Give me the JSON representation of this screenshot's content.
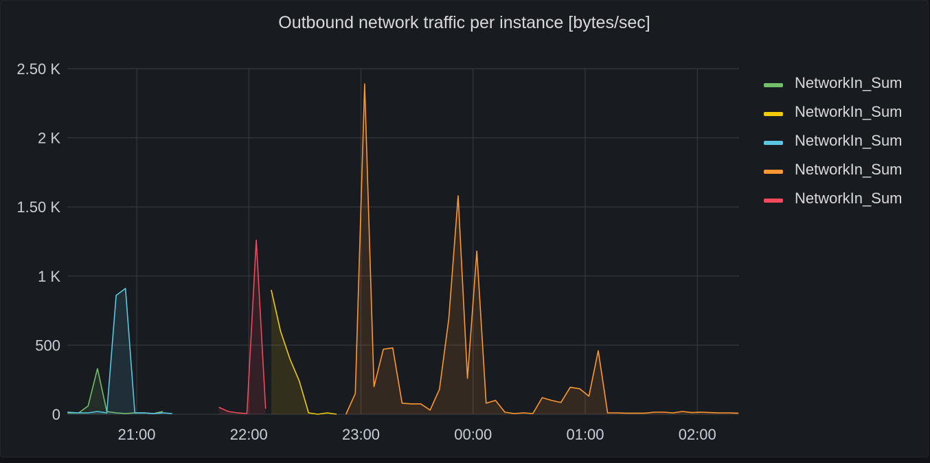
{
  "panel": {
    "title": "Outbound network traffic per instance [bytes/sec]"
  },
  "chart_data": {
    "type": "area",
    "title": "Outbound network traffic per instance [bytes/sec]",
    "xlabel": "",
    "ylabel": "",
    "x_ticks": [
      "21:00",
      "22:00",
      "23:00",
      "00:00",
      "01:00",
      "02:00"
    ],
    "y_ticks": [
      "0",
      "500",
      "1 K",
      "1.50 K",
      "2 K",
      "2.50 K"
    ],
    "ylim": [
      0,
      2500
    ],
    "grid": true,
    "legend_position": "right",
    "series": [
      {
        "name": "NetworkIn_Sum",
        "color": "#73bf69",
        "points": [
          [
            "20:23",
            10
          ],
          [
            "20:29",
            10
          ],
          [
            "20:34",
            60
          ],
          [
            "20:39",
            330
          ],
          [
            "20:44",
            20
          ],
          [
            "20:49",
            10
          ],
          [
            "20:54",
            5
          ],
          [
            "20:59",
            10
          ],
          [
            "21:04",
            10
          ],
          [
            "21:09",
            5
          ],
          [
            "21:14",
            20
          ]
        ]
      },
      {
        "name": "NetworkIn_Sum",
        "color": "#f2cc0c",
        "points": [
          [
            "22:12",
            900
          ],
          [
            "22:17",
            600
          ],
          [
            "22:22",
            400
          ],
          [
            "22:27",
            240
          ],
          [
            "22:32",
            10
          ],
          [
            "22:37",
            0
          ],
          [
            "22:42",
            10
          ],
          [
            "22:47",
            0
          ]
        ]
      },
      {
        "name": "NetworkIn_Sum",
        "color": "#5ac8e3",
        "points": [
          [
            "20:23",
            15
          ],
          [
            "20:29",
            10
          ],
          [
            "20:34",
            10
          ],
          [
            "20:39",
            20
          ],
          [
            "20:44",
            10
          ],
          [
            "20:49",
            860
          ],
          [
            "20:54",
            910
          ],
          [
            "20:59",
            10
          ],
          [
            "21:04",
            10
          ],
          [
            "21:09",
            5
          ],
          [
            "21:14",
            10
          ],
          [
            "21:19",
            5
          ]
        ]
      },
      {
        "name": "NetworkIn_Sum",
        "color": "#ff9830",
        "points": [
          [
            "22:52",
            0
          ],
          [
            "22:57",
            150
          ],
          [
            "23:02",
            2390
          ],
          [
            "23:07",
            200
          ],
          [
            "23:12",
            470
          ],
          [
            "23:17",
            480
          ],
          [
            "23:22",
            80
          ],
          [
            "23:27",
            75
          ],
          [
            "23:32",
            75
          ],
          [
            "23:37",
            30
          ],
          [
            "23:42",
            180
          ],
          [
            "23:47",
            690
          ],
          [
            "23:52",
            1580
          ],
          [
            "23:57",
            260
          ],
          [
            "00:02",
            1180
          ],
          [
            "00:07",
            80
          ],
          [
            "00:12",
            100
          ],
          [
            "00:17",
            15
          ],
          [
            "00:22",
            5
          ],
          [
            "00:27",
            10
          ],
          [
            "00:32",
            5
          ],
          [
            "00:37",
            120
          ],
          [
            "00:42",
            100
          ],
          [
            "00:47",
            85
          ],
          [
            "00:52",
            195
          ],
          [
            "00:57",
            185
          ],
          [
            "01:02",
            130
          ],
          [
            "01:07",
            460
          ],
          [
            "01:12",
            10
          ],
          [
            "01:17",
            10
          ],
          [
            "01:22",
            8
          ],
          [
            "01:27",
            8
          ],
          [
            "01:32",
            8
          ],
          [
            "01:37",
            15
          ],
          [
            "01:42",
            15
          ],
          [
            "01:47",
            10
          ],
          [
            "01:52",
            20
          ],
          [
            "01:57",
            12
          ],
          [
            "02:02",
            15
          ],
          [
            "02:07",
            12
          ],
          [
            "02:12",
            10
          ],
          [
            "02:17",
            10
          ],
          [
            "02:22",
            8
          ]
        ]
      },
      {
        "name": "NetworkIn_Sum",
        "color": "#f2495c",
        "points": [
          [
            "21:44",
            50
          ],
          [
            "21:49",
            20
          ],
          [
            "21:54",
            10
          ],
          [
            "21:59",
            5
          ],
          [
            "22:04",
            1260
          ],
          [
            "22:09",
            40
          ]
        ]
      }
    ]
  }
}
